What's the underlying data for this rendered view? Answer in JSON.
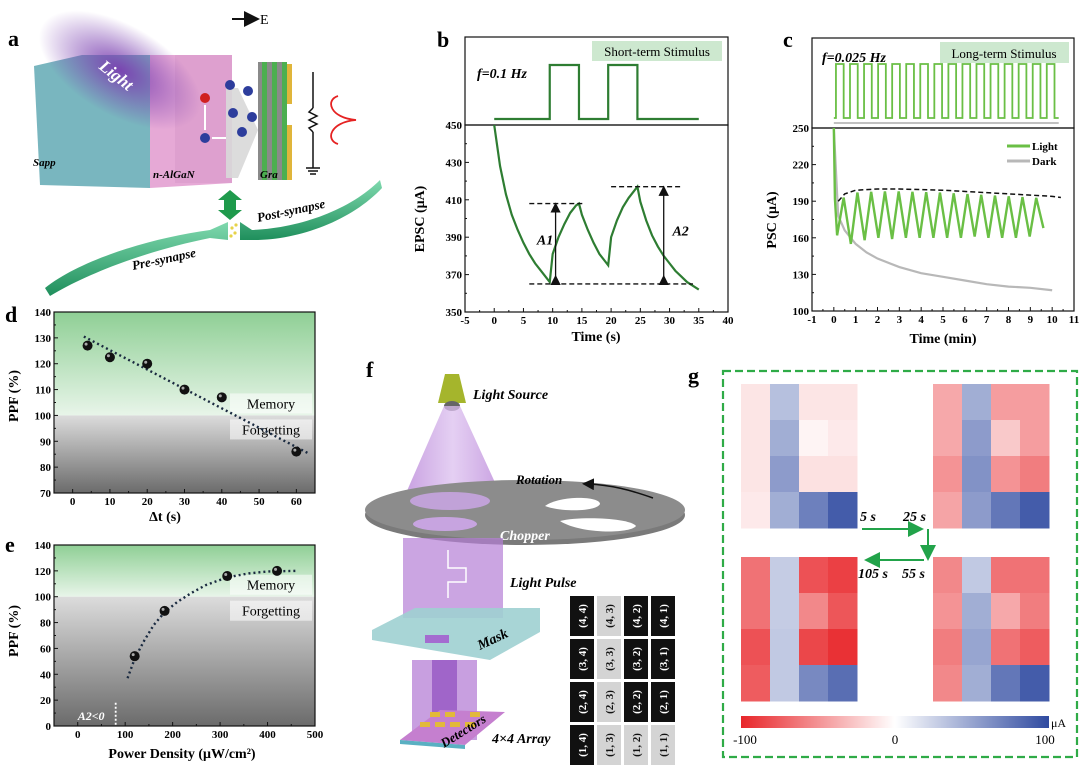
{
  "panels": {
    "a": {
      "letter": "a",
      "labels": {
        "light": "Light",
        "field": "E",
        "substrate": "Sapp",
        "layer": "n-AlGaN",
        "graphene": "Gra",
        "post": "Post-synapse",
        "pre": "Pre-synapse"
      }
    },
    "b": {
      "letter": "b"
    },
    "c": {
      "letter": "c"
    },
    "d": {
      "letter": "d"
    },
    "e": {
      "letter": "e"
    },
    "f": {
      "letter": "f",
      "labels": {
        "source": "Light Source",
        "rotation": "Rotation",
        "chopper": "Chopper",
        "pulse": "Light Pulse",
        "mask": "Mask",
        "detectors": "Detectors",
        "array": "4×4 Array"
      },
      "grid": [
        [
          "(4, 4)",
          "(4, 3)",
          "(4, 2)",
          "(4, 1)"
        ],
        [
          "(3, 4)",
          "(3, 3)",
          "(3, 2)",
          "(3, 1)"
        ],
        [
          "(2, 4)",
          "(2, 3)",
          "(2, 2)",
          "(2, 1)"
        ],
        [
          "(1, 4)",
          "(1, 3)",
          "(1, 2)",
          "(1, 1)"
        ]
      ],
      "grid_dark": [
        [
          true,
          false,
          true,
          true
        ],
        [
          true,
          false,
          true,
          true
        ],
        [
          true,
          false,
          true,
          true
        ],
        [
          true,
          false,
          false,
          false
        ]
      ]
    },
    "g": {
      "letter": "g",
      "times": [
        "5 s",
        "25 s",
        "55 s",
        "105 s"
      ],
      "colorbar": {
        "min_label": "-100",
        "mid_label": "0",
        "max_label": "100",
        "unit": "μA",
        "neg_color": "#e8262a",
        "pos_color": "#2f4aa0"
      }
    }
  },
  "chart_data": [
    {
      "id": "b",
      "type": "line",
      "title": "Short-term Stimulus",
      "annotation": "f=0.1 Hz",
      "xlabel": "Time (s)",
      "ylabel": "EPSC (μA)",
      "xlim": [
        -5,
        40
      ],
      "ylim": [
        350,
        450
      ],
      "xticks": [
        -5,
        0,
        5,
        10,
        15,
        20,
        25,
        30,
        35,
        40
      ],
      "yticks": [
        350,
        370,
        390,
        410,
        430,
        450
      ],
      "stimulus_pulses": [
        [
          9.5,
          14.5
        ],
        [
          19.5,
          24.5
        ]
      ],
      "stimulus_range": [
        0,
        35
      ],
      "series": [
        {
          "name": "EPSC",
          "color": "#2e7d32",
          "x": [
            0,
            1,
            2,
            3,
            4,
            5,
            6,
            7,
            8,
            9,
            9.5,
            10,
            11,
            12,
            13,
            14,
            14.5,
            15,
            16,
            17,
            18,
            19,
            19.5,
            20,
            21,
            22,
            23,
            24,
            24.5,
            25,
            26,
            27,
            28,
            29,
            30,
            31,
            32,
            33,
            34,
            35
          ],
          "y": [
            450,
            428,
            413,
            402,
            394,
            387,
            381,
            376,
            372,
            368,
            366,
            381,
            390,
            397,
            403,
            407,
            408,
            402,
            394,
            387,
            381,
            377,
            375,
            390,
            399,
            406,
            411,
            415,
            417,
            409,
            399,
            391,
            385,
            380,
            376,
            372,
            369,
            366,
            364,
            362
          ]
        }
      ],
      "annotations": [
        {
          "text": "A1",
          "value_low": 365,
          "value_high": 408
        },
        {
          "text": "A2",
          "value_low": 365,
          "value_high": 417
        }
      ]
    },
    {
      "id": "c",
      "type": "line",
      "title": "Long-term Stimulus",
      "annotation": "f=0.025 Hz",
      "xlabel": "Time (min)",
      "ylabel": "PSC (μA)",
      "xlim": [
        -1,
        11
      ],
      "ylim": [
        100,
        250
      ],
      "xticks": [
        -1,
        0,
        1,
        2,
        3,
        4,
        5,
        6,
        7,
        8,
        9,
        10,
        11
      ],
      "yticks": [
        100,
        130,
        160,
        190,
        220,
        250
      ],
      "pulse_count": 16,
      "legend": {
        "position": "top-right",
        "entries": [
          "Light",
          "Dark"
        ]
      },
      "series": [
        {
          "name": "Light",
          "color": "#6abf45",
          "peak_envelope": [
            [
              0.2,
              190
            ],
            [
              0.5,
              196
            ],
            [
              1,
              199
            ],
            [
              2,
              200
            ],
            [
              3,
              200
            ],
            [
              5,
              199
            ],
            [
              7,
              197
            ],
            [
              9,
              195
            ],
            [
              10,
              194
            ],
            [
              10.4,
              193
            ]
          ],
          "troughs": [
            162,
            155,
            158,
            160,
            159,
            160,
            160,
            160,
            160,
            160,
            161,
            160,
            160,
            160,
            161,
            168
          ]
        },
        {
          "name": "Dark",
          "color": "#b8b8b8",
          "x": [
            0,
            0.2,
            0.5,
            1,
            1.5,
            2,
            3,
            4,
            5,
            6,
            7,
            8,
            9,
            10
          ],
          "y": [
            250,
            178,
            166,
            155,
            148,
            143,
            136,
            131,
            128,
            125,
            122,
            120,
            119,
            117
          ]
        }
      ]
    },
    {
      "id": "d",
      "type": "scatter",
      "xlabel": "Δt (s)",
      "ylabel": "PPF (%)",
      "xlim": [
        -5,
        65
      ],
      "ylim": [
        70,
        140
      ],
      "xticks": [
        0,
        10,
        20,
        30,
        40,
        50,
        60
      ],
      "yticks": [
        70,
        80,
        90,
        100,
        110,
        120,
        130,
        140
      ],
      "threshold": 100,
      "region_labels": [
        "Memory",
        "Forgetting"
      ],
      "series": [
        {
          "name": "PPF",
          "x": [
            4,
            10,
            20,
            30,
            40,
            60
          ],
          "y": [
            127,
            122.5,
            120,
            110,
            107,
            86
          ]
        }
      ],
      "fit": {
        "x": [
          3,
          63
        ],
        "y": [
          130.5,
          85.5
        ]
      }
    },
    {
      "id": "e",
      "type": "scatter",
      "xlabel": "Power Density (μW/cm²)",
      "ylabel": "PPF (%)",
      "xlim": [
        -50,
        500
      ],
      "ylim": [
        0,
        140
      ],
      "xticks": [
        0,
        100,
        200,
        300,
        400,
        500
      ],
      "yticks": [
        0,
        20,
        40,
        60,
        80,
        100,
        120,
        140
      ],
      "threshold": 100,
      "region_labels": [
        "Memory",
        "Forgetting"
      ],
      "annotation": {
        "text": "A2<0",
        "x": 80
      },
      "series": [
        {
          "name": "PPF",
          "x": [
            120,
            183,
            315,
            420
          ],
          "y": [
            54,
            89,
            116,
            120
          ]
        }
      ],
      "fit": {
        "x": [
          105,
          120,
          140,
          160,
          183,
          210,
          240,
          270,
          300,
          330,
          360,
          400,
          460
        ],
        "y": [
          37,
          52,
          66,
          78,
          88,
          96,
          103,
          109,
          113,
          116,
          118,
          119.5,
          120
        ]
      }
    },
    {
      "id": "g",
      "type": "heatmap",
      "unit": "μA",
      "range": [
        -100,
        100
      ],
      "maps": [
        {
          "time": "5 s",
          "values": [
            [
              -12,
              35,
              -12,
              -12
            ],
            [
              -12,
              45,
              -5,
              -10
            ],
            [
              -12,
              55,
              -14,
              -14
            ],
            [
              -10,
              45,
              70,
              90
            ]
          ]
        },
        {
          "time": "25 s",
          "values": [
            [
              -40,
              45,
              -45,
              -45
            ],
            [
              -40,
              55,
              -25,
              -45
            ],
            [
              -50,
              60,
              -50,
              -60
            ],
            [
              -42,
              55,
              75,
              90
            ]
          ]
        },
        {
          "time": "55 s",
          "values": [
            [
              -55,
              30,
              -65,
              -65
            ],
            [
              -50,
              45,
              -40,
              -60
            ],
            [
              -60,
              50,
              -65,
              -75
            ],
            [
              -55,
              45,
              75,
              90
            ]
          ]
        },
        {
          "time": "105 s",
          "values": [
            [
              -65,
              28,
              -80,
              -88
            ],
            [
              -65,
              28,
              -55,
              -78
            ],
            [
              -80,
              30,
              -85,
              -95
            ],
            [
              -75,
              30,
              65,
              80
            ]
          ]
        }
      ]
    }
  ]
}
